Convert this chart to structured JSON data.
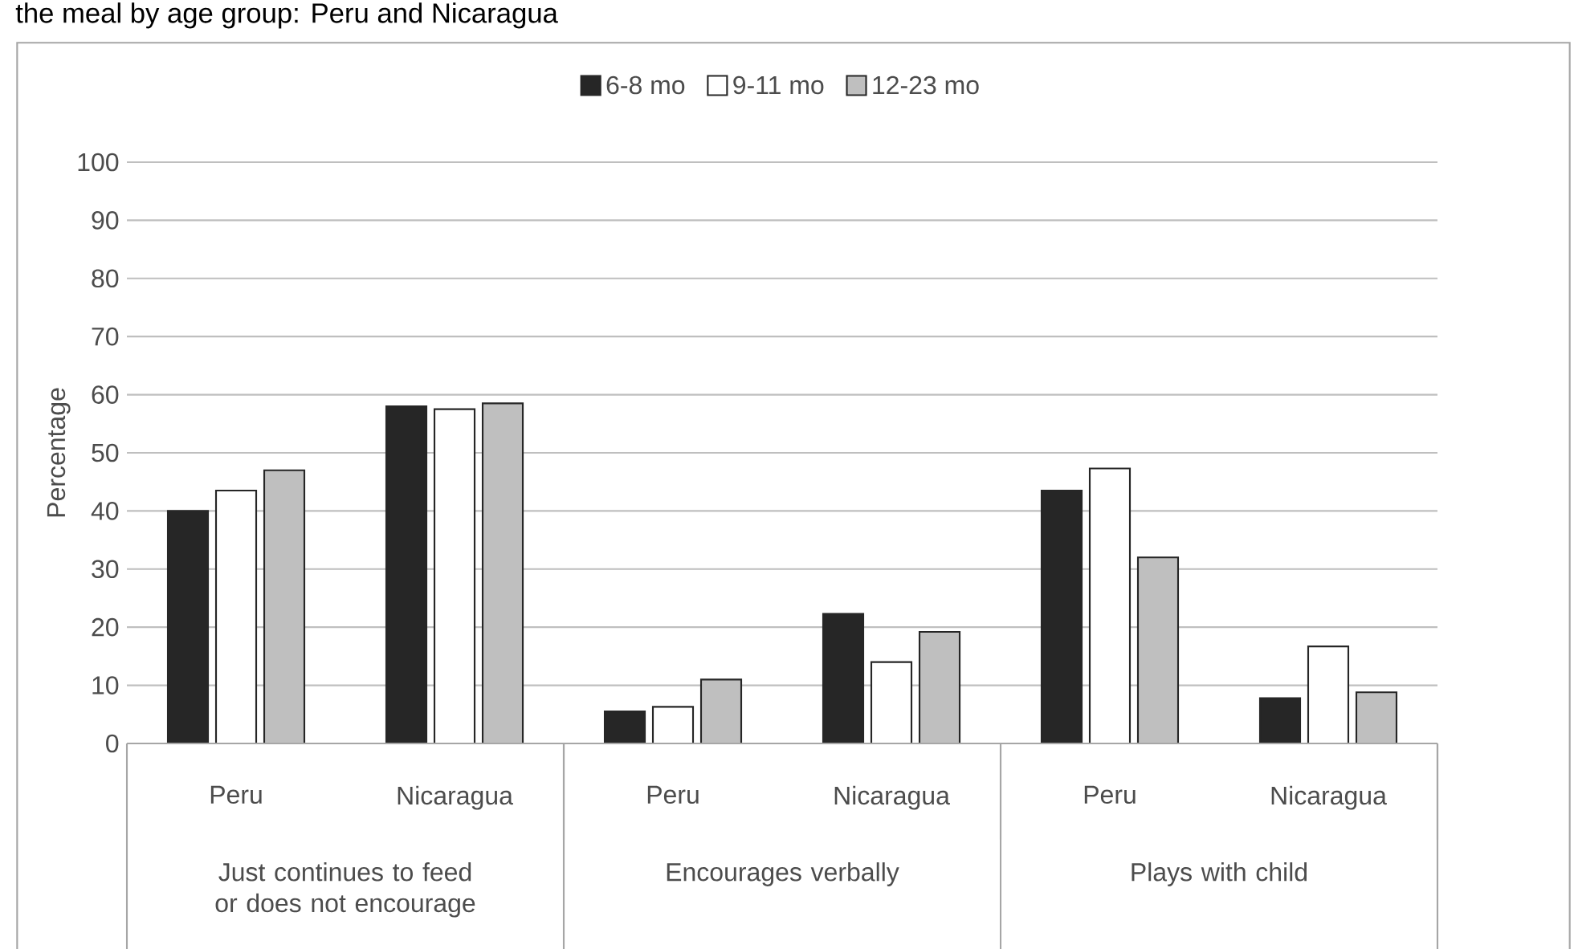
{
  "chart_data": {
    "type": "bar",
    "title": "the meal by age group: Peru and Nicaragua",
    "ylabel": "Percentage",
    "categories": [
      "Peru",
      "Nicaragua",
      "Peru",
      "Nicaragua",
      "Peru",
      "Nicaragua"
    ],
    "series": [
      {
        "name": "6-8 mo",
        "color": "#262626",
        "values": [
          40,
          58,
          5.5,
          22.3,
          43.5,
          7.8
        ]
      },
      {
        "name": "9-11 mo",
        "color": "#ffffff",
        "values": [
          43.5,
          57.5,
          6.3,
          14,
          47.3,
          16.7
        ]
      },
      {
        "name": "12-23 mo",
        "color": "#bfbfbf",
        "values": [
          47,
          58.5,
          11,
          19.2,
          32,
          8.8
        ]
      }
    ],
    "annotations": [
      "Just continues to feed or does not encourage",
      "Encourages verbally",
      "Plays with child"
    ],
    "ylim": [
      0,
      100
    ],
    "yticks": [
      0,
      10,
      20,
      30,
      40,
      50,
      60,
      70,
      80,
      90,
      100
    ],
    "grid": "y",
    "legend": "top"
  }
}
